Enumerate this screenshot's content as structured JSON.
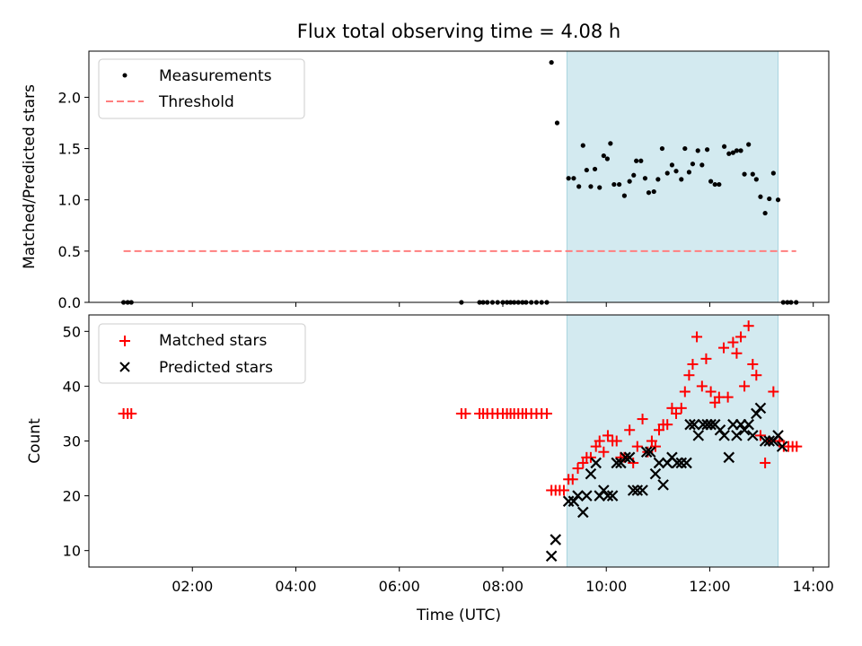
{
  "chart_data": {
    "title": "Flux total observing time = 4.08 h",
    "xlabel": "Time (UTC)",
    "x_ticks": [
      "02:00",
      "04:00",
      "06:00",
      "08:00",
      "10:00",
      "12:00",
      "14:00"
    ],
    "x_tick_hours": [
      2,
      4,
      6,
      8,
      10,
      12,
      14
    ],
    "xlim_hours": [
      0.0,
      14.3
    ],
    "highlight_span_hours": [
      9.24,
      13.32
    ],
    "highlight_color": "#d3eaf0",
    "colors": {
      "measurements": "#000000",
      "threshold": "#ff7f7f",
      "matched": "#ff0000",
      "predicted": "#000000"
    },
    "top": {
      "type": "scatter",
      "ylabel": "Matched/Predicted stars",
      "ylim": [
        0,
        2.45
      ],
      "y_ticks": [
        "0.0",
        "0.5",
        "1.0",
        "1.5",
        "2.0"
      ],
      "y_tick_values": [
        0,
        0.5,
        1.0,
        1.5,
        2.0
      ],
      "legend": {
        "measurements": "Measurements",
        "threshold": "Threshold",
        "placement": "upper-left"
      },
      "threshold": {
        "value": 0.5,
        "x_start": 0.67,
        "x_end": 13.67
      },
      "measurements": [
        [
          0.67,
          0
        ],
        [
          0.75,
          0
        ],
        [
          0.82,
          0
        ],
        [
          7.2,
          0
        ],
        [
          7.55,
          0
        ],
        [
          7.62,
          0
        ],
        [
          7.7,
          0
        ],
        [
          7.8,
          0
        ],
        [
          7.9,
          0
        ],
        [
          8.0,
          0
        ],
        [
          8.08,
          0
        ],
        [
          8.15,
          0
        ],
        [
          8.22,
          0
        ],
        [
          8.3,
          0
        ],
        [
          8.38,
          0
        ],
        [
          8.45,
          0
        ],
        [
          8.55,
          0
        ],
        [
          8.65,
          0
        ],
        [
          8.75,
          0
        ],
        [
          8.85,
          0
        ],
        [
          8.94,
          2.34
        ],
        [
          9.05,
          1.75
        ],
        [
          9.27,
          1.21
        ],
        [
          9.37,
          1.21
        ],
        [
          9.47,
          1.13
        ],
        [
          9.55,
          1.53
        ],
        [
          9.62,
          1.29
        ],
        [
          9.7,
          1.13
        ],
        [
          9.78,
          1.3
        ],
        [
          9.87,
          1.12
        ],
        [
          9.95,
          1.43
        ],
        [
          10.02,
          1.4
        ],
        [
          10.08,
          1.55
        ],
        [
          10.15,
          1.15
        ],
        [
          10.25,
          1.15
        ],
        [
          10.35,
          1.04
        ],
        [
          10.45,
          1.18
        ],
        [
          10.53,
          1.24
        ],
        [
          10.58,
          1.38
        ],
        [
          10.67,
          1.38
        ],
        [
          10.75,
          1.21
        ],
        [
          10.82,
          1.07
        ],
        [
          10.92,
          1.08
        ],
        [
          11.0,
          1.2
        ],
        [
          11.08,
          1.5
        ],
        [
          11.18,
          1.26
        ],
        [
          11.27,
          1.34
        ],
        [
          11.35,
          1.28
        ],
        [
          11.45,
          1.2
        ],
        [
          11.52,
          1.5
        ],
        [
          11.6,
          1.27
        ],
        [
          11.67,
          1.35
        ],
        [
          11.77,
          1.48
        ],
        [
          11.85,
          1.34
        ],
        [
          11.95,
          1.49
        ],
        [
          12.02,
          1.18
        ],
        [
          12.1,
          1.15
        ],
        [
          12.18,
          1.15
        ],
        [
          12.28,
          1.52
        ],
        [
          12.37,
          1.45
        ],
        [
          12.45,
          1.46
        ],
        [
          12.52,
          1.48
        ],
        [
          12.6,
          1.48
        ],
        [
          12.67,
          1.25
        ],
        [
          12.75,
          1.54
        ],
        [
          12.83,
          1.25
        ],
        [
          12.9,
          1.2
        ],
        [
          12.98,
          1.03
        ],
        [
          13.07,
          0.87
        ],
        [
          13.15,
          1.01
        ],
        [
          13.23,
          1.26
        ],
        [
          13.32,
          1.0
        ],
        [
          13.42,
          0
        ],
        [
          13.5,
          0
        ],
        [
          13.57,
          0
        ],
        [
          13.67,
          0
        ]
      ]
    },
    "bottom": {
      "type": "scatter",
      "ylabel": "Count",
      "ylim": [
        7,
        53
      ],
      "y_ticks": [
        "10",
        "20",
        "30",
        "40",
        "50"
      ],
      "y_tick_values": [
        10,
        20,
        30,
        40,
        50
      ],
      "legend": {
        "matched": "Matched stars",
        "predicted": "Predicted stars",
        "placement": "upper-left"
      },
      "matched": [
        [
          0.67,
          35
        ],
        [
          0.75,
          35
        ],
        [
          0.82,
          35
        ],
        [
          7.2,
          35
        ],
        [
          7.28,
          35
        ],
        [
          7.55,
          35
        ],
        [
          7.62,
          35
        ],
        [
          7.7,
          35
        ],
        [
          7.8,
          35
        ],
        [
          7.9,
          35
        ],
        [
          8.0,
          35
        ],
        [
          8.08,
          35
        ],
        [
          8.15,
          35
        ],
        [
          8.22,
          35
        ],
        [
          8.3,
          35
        ],
        [
          8.38,
          35
        ],
        [
          8.45,
          35
        ],
        [
          8.55,
          35
        ],
        [
          8.65,
          35
        ],
        [
          8.75,
          35
        ],
        [
          8.85,
          35
        ],
        [
          8.94,
          21
        ],
        [
          9.02,
          21
        ],
        [
          9.1,
          21
        ],
        [
          9.18,
          21
        ],
        [
          9.27,
          23
        ],
        [
          9.35,
          23
        ],
        [
          9.45,
          25
        ],
        [
          9.55,
          26
        ],
        [
          9.62,
          27
        ],
        [
          9.7,
          27
        ],
        [
          9.8,
          29
        ],
        [
          9.87,
          30
        ],
        [
          9.95,
          28
        ],
        [
          10.03,
          31
        ],
        [
          10.12,
          30
        ],
        [
          10.2,
          30
        ],
        [
          10.28,
          27
        ],
        [
          10.35,
          27
        ],
        [
          10.45,
          32
        ],
        [
          10.52,
          26
        ],
        [
          10.6,
          29
        ],
        [
          10.7,
          34
        ],
        [
          10.8,
          28
        ],
        [
          10.88,
          30
        ],
        [
          10.95,
          29
        ],
        [
          11.02,
          32
        ],
        [
          11.1,
          33
        ],
        [
          11.18,
          33
        ],
        [
          11.27,
          36
        ],
        [
          11.35,
          35
        ],
        [
          11.45,
          36
        ],
        [
          11.52,
          39
        ],
        [
          11.6,
          42
        ],
        [
          11.67,
          44
        ],
        [
          11.75,
          49
        ],
        [
          11.85,
          40
        ],
        [
          11.93,
          45
        ],
        [
          12.02,
          39
        ],
        [
          12.1,
          37
        ],
        [
          12.18,
          38
        ],
        [
          12.27,
          47
        ],
        [
          12.35,
          38
        ],
        [
          12.45,
          48
        ],
        [
          12.52,
          46
        ],
        [
          12.6,
          49
        ],
        [
          12.67,
          40
        ],
        [
          12.75,
          51
        ],
        [
          12.83,
          44
        ],
        [
          12.9,
          42
        ],
        [
          12.98,
          31
        ],
        [
          13.07,
          26
        ],
        [
          13.15,
          30
        ],
        [
          13.23,
          39
        ],
        [
          13.35,
          30
        ],
        [
          13.43,
          29
        ],
        [
          13.52,
          29
        ],
        [
          13.6,
          29
        ],
        [
          13.68,
          29
        ]
      ],
      "predicted": [
        [
          8.94,
          9
        ],
        [
          9.02,
          12
        ],
        [
          9.27,
          19
        ],
        [
          9.37,
          19
        ],
        [
          9.45,
          20
        ],
        [
          9.55,
          17
        ],
        [
          9.62,
          20
        ],
        [
          9.7,
          24
        ],
        [
          9.8,
          26
        ],
        [
          9.87,
          20
        ],
        [
          9.95,
          21
        ],
        [
          10.03,
          20
        ],
        [
          10.12,
          20
        ],
        [
          10.2,
          26
        ],
        [
          10.28,
          26
        ],
        [
          10.37,
          27
        ],
        [
          10.45,
          27
        ],
        [
          10.52,
          21
        ],
        [
          10.6,
          21
        ],
        [
          10.7,
          21
        ],
        [
          10.78,
          28
        ],
        [
          10.85,
          28
        ],
        [
          10.95,
          24
        ],
        [
          11.02,
          26
        ],
        [
          11.1,
          22
        ],
        [
          11.18,
          26
        ],
        [
          11.27,
          27
        ],
        [
          11.37,
          26
        ],
        [
          11.45,
          26
        ],
        [
          11.55,
          26
        ],
        [
          11.62,
          33
        ],
        [
          11.7,
          33
        ],
        [
          11.78,
          31
        ],
        [
          11.87,
          33
        ],
        [
          11.95,
          33
        ],
        [
          12.02,
          33
        ],
        [
          12.1,
          33
        ],
        [
          12.2,
          32
        ],
        [
          12.28,
          31
        ],
        [
          12.37,
          27
        ],
        [
          12.45,
          33
        ],
        [
          12.52,
          31
        ],
        [
          12.6,
          33
        ],
        [
          12.67,
          32
        ],
        [
          12.75,
          33
        ],
        [
          12.83,
          31
        ],
        [
          12.9,
          35
        ],
        [
          12.98,
          36
        ],
        [
          13.07,
          30
        ],
        [
          13.15,
          30
        ],
        [
          13.23,
          30
        ],
        [
          13.32,
          31
        ],
        [
          13.4,
          29
        ]
      ]
    }
  }
}
